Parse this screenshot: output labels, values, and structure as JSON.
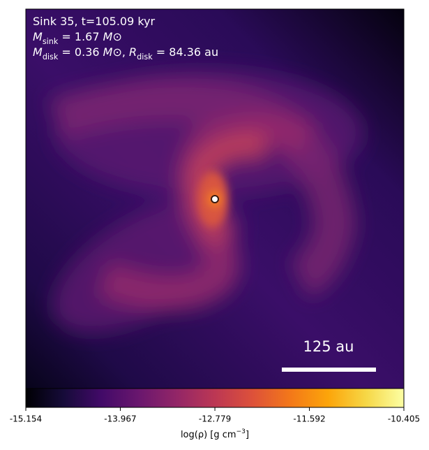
{
  "chart_data": {
    "type": "image",
    "annotations": [
      {
        "parts": [
          "Sink 35, t=105.09 kyr"
        ]
      },
      {
        "parts": [
          "M",
          "sink",
          " = 1.67 ",
          "M",
          "⊙"
        ]
      },
      {
        "parts": [
          "M",
          "disk",
          " = 0.36 ",
          "M",
          "⊙",
          ", ",
          "R",
          "disk",
          " = 84.36 au"
        ]
      }
    ],
    "scale_bar_label": "125 au",
    "colorbar": {
      "label": {
        "parts": [
          "log(ρ) [g cm",
          "−3",
          "]"
        ]
      },
      "clim": [
        -15.154,
        -10.405
      ],
      "ticks": [
        -15.154,
        -13.967,
        -12.779,
        -11.592,
        -10.405
      ],
      "colormap": [
        "#000004",
        "#160b39",
        "#420a68",
        "#6a176e",
        "#932667",
        "#bc3754",
        "#dd513a",
        "#f37819",
        "#fca50a",
        "#f6d746",
        "#fcffa4"
      ]
    }
  }
}
